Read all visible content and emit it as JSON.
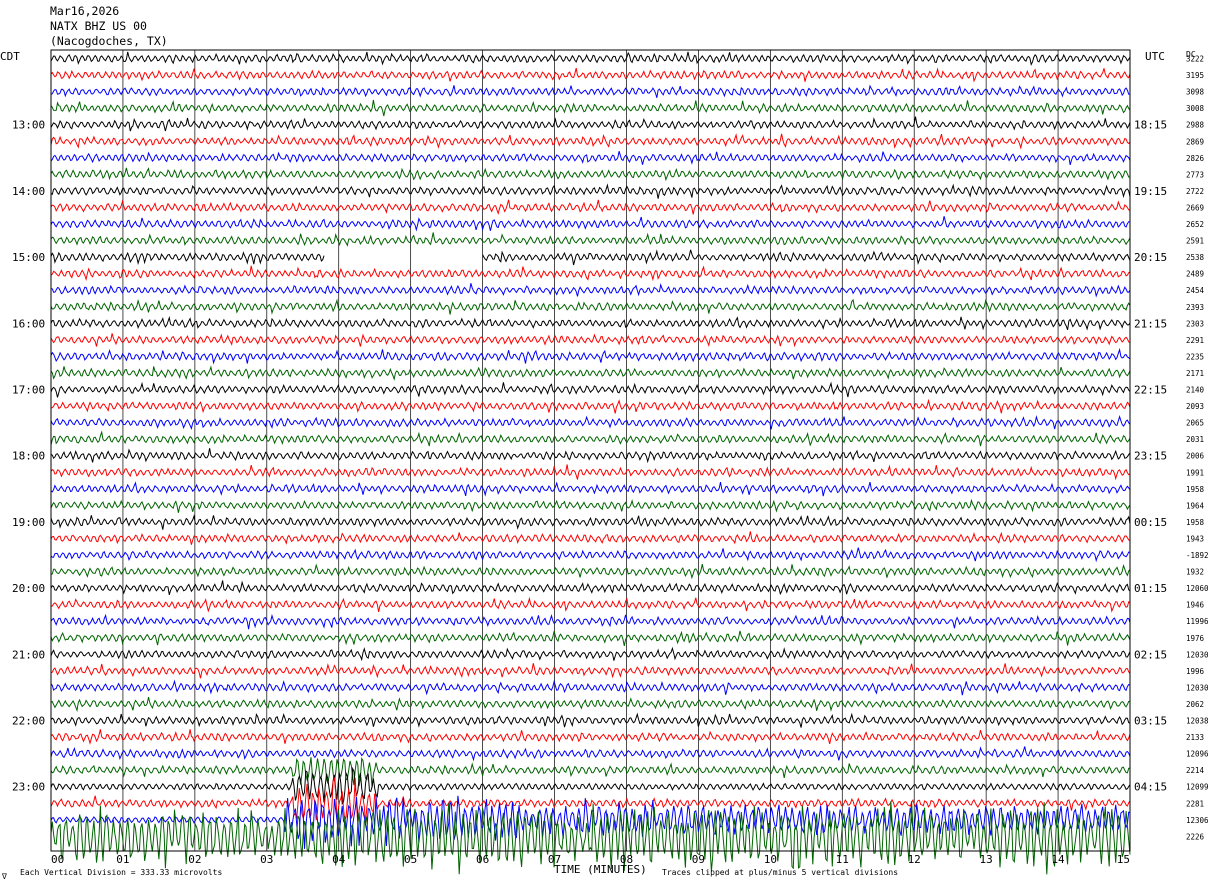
{
  "header": {
    "date": "Mar16,2026",
    "station": "NATX BHZ US 00",
    "location": "(Nacogdoches, TX)"
  },
  "axes": {
    "left_tz": "CDT",
    "right_tz": "UTC",
    "dc_label": "DC",
    "xlabel": "TIME (MINUTES)",
    "footer_left": "Each Vertical Division = 333.33 microvolts",
    "footer_right": "Traces clipped at plus/minus 5 vertical divisions",
    "footer_mark": "∇"
  },
  "chart_data": {
    "type": "line",
    "title": "NATX BHZ US 00",
    "xlabel": "TIME (MINUTES)",
    "x_ticks": [
      "00",
      "01",
      "02",
      "03",
      "04",
      "05",
      "06",
      "07",
      "08",
      "09",
      "10",
      "11",
      "12",
      "13",
      "14",
      "15"
    ],
    "xlim": [
      0,
      15
    ],
    "grid": true,
    "trace_colors": [
      "#000000",
      "#ff0000",
      "#0000ff",
      "#006400"
    ],
    "left_hour_labels": [
      "13:00",
      "14:00",
      "15:00",
      "16:00",
      "17:00",
      "18:00",
      "19:00",
      "20:00",
      "21:00",
      "22:00",
      "23:00"
    ],
    "right_hour_labels": [
      "18:15",
      "19:15",
      "20:15",
      "21:15",
      "22:15",
      "23:15",
      "00:15",
      "01:15",
      "02:15",
      "03:15",
      "04:15"
    ],
    "first_hour_label_row": 4,
    "dc_offsets": [
      "3222",
      "3195",
      "3098",
      "3008",
      "2988",
      "2869",
      "2826",
      "2773",
      "2722",
      "2669",
      "2652",
      "2591",
      "2538",
      "2489",
      "2454",
      "2393",
      "2303",
      "2291",
      "2235",
      "2171",
      "2140",
      "2093",
      "2065",
      "2031",
      "2006",
      "1991",
      "1958",
      "1964",
      "1958",
      "1943",
      "-1892",
      "1932",
      "12060",
      "1946",
      "11996",
      "1976",
      "12030",
      "1996",
      "12030",
      "2062",
      "12038",
      "2133",
      "12096",
      "2214",
      "12099",
      "2281",
      "12306",
      "2226"
    ],
    "gap": {
      "row": 12,
      "from_min": 3.8,
      "to_min": 6.0
    },
    "earthquake": {
      "row_start": 43,
      "onset_min": 3.35,
      "peak_row": 46,
      "description_rows": [
        43,
        44,
        45,
        46,
        47
      ]
    }
  }
}
